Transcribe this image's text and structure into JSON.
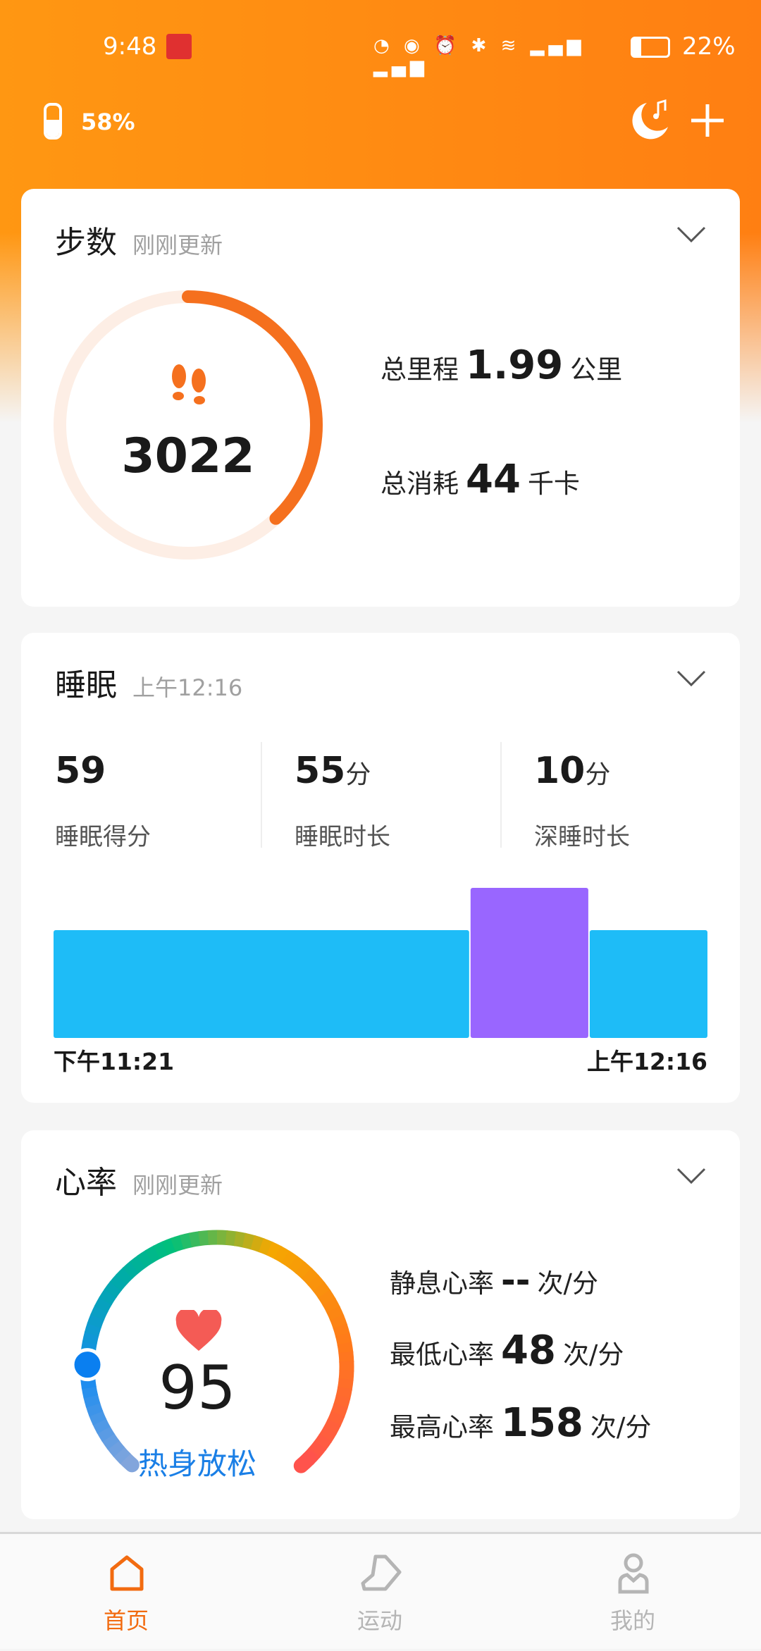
{
  "status_bar": {
    "time": "9:48",
    "battery": "22%",
    "network": "4G"
  },
  "header": {
    "band_battery": "58%",
    "icons": [
      "band-icon",
      "sleep-music-icon",
      "plus-icon"
    ]
  },
  "steps": {
    "title": "步数",
    "subtitle": "刚刚更新",
    "count": "3022",
    "progress": 0.38,
    "distance_label": "总里程",
    "distance": "1.99",
    "distance_unit": "公里",
    "calories_label": "总消耗",
    "calories": "44",
    "calories_unit": "千卡",
    "color": "#f5701e"
  },
  "sleep": {
    "title": "睡眠",
    "subtitle": "上午12:16",
    "stats": [
      {
        "value": "59",
        "unit": "",
        "label": "睡眠得分"
      },
      {
        "value": "55",
        "unit": "分",
        "label": "睡眠时长"
      },
      {
        "value": "10",
        "unit": "分",
        "label": "深睡时长"
      }
    ],
    "chart_data": {
      "type": "bar",
      "segments": [
        {
          "stage": "light",
          "minutes": 35,
          "color": "#1ebcf7"
        },
        {
          "stage": "deep",
          "minutes": 10,
          "color": "#9966ff"
        },
        {
          "stage": "light",
          "minutes": 10,
          "color": "#1ebcf7"
        }
      ],
      "start_label": "下午11:21",
      "end_label": "上午12:16"
    }
  },
  "heart": {
    "title": "心率",
    "subtitle": "刚刚更新",
    "value": "95",
    "zone": "热身放松",
    "zone_color": "#1a7fe6",
    "rows": [
      {
        "label": "静息心率",
        "value": "--",
        "unit": "次/分"
      },
      {
        "label": "最低心率",
        "value": "48",
        "unit": "次/分"
      },
      {
        "label": "最高心率",
        "value": "158",
        "unit": "次/分"
      }
    ]
  },
  "nav": {
    "items": [
      {
        "label": "首页",
        "active": true
      },
      {
        "label": "运动",
        "active": false
      },
      {
        "label": "我的",
        "active": false
      }
    ],
    "active_color": "#f26b10",
    "inactive_color": "#b5b5b5"
  }
}
